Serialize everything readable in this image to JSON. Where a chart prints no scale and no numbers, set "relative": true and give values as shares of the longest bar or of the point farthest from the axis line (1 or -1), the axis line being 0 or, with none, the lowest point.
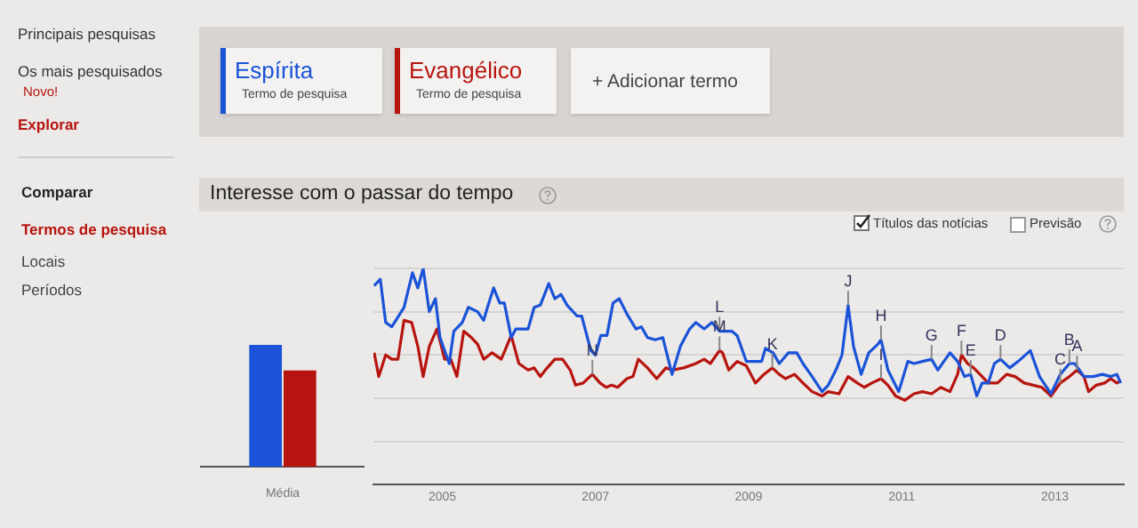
{
  "chart_data": [
    {
      "type": "bar",
      "categories": [
        "Média"
      ],
      "relative": true,
      "series": [
        {
          "color": "#1a53d8",
          "values": [
            1
          ]
        },
        {
          "color": "#b8140f",
          "values": [
            0.79
          ]
        }
      ]
    },
    {
      "type": "line",
      "title": "Interesse com o passar do tempo",
      "relative": true,
      "grid": "y",
      "legend": "top left",
      "marker": "none",
      "xlim": [
        2004.1,
        2013.9
      ],
      "xticks": [
        2005,
        2007,
        2009,
        2011,
        2013
      ],
      "series": [
        {
          "name": "Espírita",
          "color": "#1a53d8",
          "x": [
            2004.11,
            2004.19,
            2004.26,
            2004.34,
            2004.5,
            2004.61,
            2004.68,
            2004.75,
            2004.83,
            2004.91,
            2004.97,
            2005.09,
            2005.15,
            2005.26,
            2005.34,
            2005.46,
            2005.54,
            2005.59,
            2005.67,
            2005.75,
            2005.81,
            2005.9,
            2005.96,
            2006.12,
            2006.2,
            2006.28,
            2006.39,
            2006.47,
            2006.55,
            2006.63,
            2006.76,
            2006.82,
            2006.94,
            2007.0,
            2007.07,
            2007.15,
            2007.23,
            2007.31,
            2007.41,
            2007.53,
            2007.6,
            2007.68,
            2007.78,
            2007.88,
            2008.0,
            2008.11,
            2008.23,
            2008.31,
            2008.42,
            2008.52,
            2008.62,
            2008.78,
            2008.85,
            2008.97,
            2009.17,
            2009.22,
            2009.32,
            2009.4,
            2009.52,
            2009.63,
            2009.71,
            2009.83,
            2009.96,
            2010.04,
            2010.14,
            2010.22,
            2010.3,
            2010.37,
            2010.47,
            2010.57,
            2010.69,
            2010.73,
            2010.82,
            2010.96,
            2011.08,
            2011.16,
            2011.27,
            2011.39,
            2011.47,
            2011.63,
            2011.73,
            2011.82,
            2011.9,
            2011.98,
            2012.05,
            2012.13,
            2012.21,
            2012.29,
            2012.41,
            2012.52,
            2012.68,
            2012.8,
            2012.95,
            2013.07,
            2013.19,
            2013.26,
            2013.38,
            2013.5,
            2013.62,
            2013.73,
            2013.81,
            2013.86
          ],
          "values": [
            0.92,
            0.95,
            0.75,
            0.73,
            0.82,
            0.98,
            0.91,
            1,
            0.8,
            0.86,
            0.68,
            0.56,
            0.71,
            0.75,
            0.82,
            0.8,
            0.76,
            0.82,
            0.91,
            0.84,
            0.84,
            0.68,
            0.72,
            0.72,
            0.82,
            0.83,
            0.93,
            0.86,
            0.88,
            0.83,
            0.78,
            0.78,
            0.62,
            0.6,
            0.69,
            0.69,
            0.84,
            0.86,
            0.79,
            0.72,
            0.73,
            0.68,
            0.67,
            0.68,
            0.51,
            0.64,
            0.72,
            0.75,
            0.72,
            0.75,
            0.71,
            0.71,
            0.69,
            0.57,
            0.57,
            0.63,
            0.61,
            0.56,
            0.61,
            0.61,
            0.56,
            0.5,
            0.43,
            0.46,
            0.53,
            0.6,
            0.83,
            0.64,
            0.51,
            0.61,
            0.65,
            0.67,
            0.53,
            0.43,
            0.57,
            0.56,
            0.57,
            0.58,
            0.53,
            0.61,
            0.57,
            0.5,
            0.51,
            0.41,
            0.47,
            0.47,
            0.56,
            0.58,
            0.54,
            0.57,
            0.62,
            0.5,
            0.42,
            0.51,
            0.56,
            0.56,
            0.5,
            0.5,
            0.51,
            0.5,
            0.51,
            0.47
          ]
        },
        {
          "name": "Evangélico",
          "color": "#b8140f",
          "x": [
            2004.11,
            2004.17,
            2004.26,
            2004.34,
            2004.42,
            2004.5,
            2004.6,
            2004.68,
            2004.75,
            2004.83,
            2004.93,
            2005.03,
            2005.11,
            2005.19,
            2005.28,
            2005.38,
            2005.46,
            2005.54,
            2005.65,
            2005.77,
            2005.9,
            2006.0,
            2006.12,
            2006.2,
            2006.28,
            2006.37,
            2006.47,
            2006.57,
            2006.67,
            2006.74,
            2006.84,
            2006.96,
            2007.06,
            2007.14,
            2007.21,
            2007.29,
            2007.41,
            2007.49,
            2007.56,
            2007.68,
            2007.8,
            2007.92,
            2008.0,
            2008.15,
            2008.31,
            2008.42,
            2008.5,
            2008.62,
            2008.66,
            2008.74,
            2008.85,
            2008.97,
            2009.09,
            2009.2,
            2009.31,
            2009.4,
            2009.48,
            2009.6,
            2009.71,
            2009.83,
            2009.96,
            2010.04,
            2010.18,
            2010.3,
            2010.42,
            2010.51,
            2010.61,
            2010.73,
            2010.82,
            2010.92,
            2011.04,
            2011.16,
            2011.27,
            2011.39,
            2011.51,
            2011.63,
            2011.73,
            2011.78,
            2011.86,
            2011.94,
            2012.05,
            2012.13,
            2012.25,
            2012.37,
            2012.48,
            2012.6,
            2012.72,
            2012.83,
            2012.95,
            2013.07,
            2013.19,
            2013.29,
            2013.38,
            2013.44,
            2013.54,
            2013.65,
            2013.73,
            2013.81,
            2013.86
          ],
          "values": [
            0.61,
            0.5,
            0.6,
            0.58,
            0.58,
            0.76,
            0.75,
            0.64,
            0.5,
            0.64,
            0.72,
            0.58,
            0.58,
            0.5,
            0.71,
            0.68,
            0.65,
            0.58,
            0.61,
            0.58,
            0.69,
            0.56,
            0.53,
            0.54,
            0.5,
            0.54,
            0.58,
            0.58,
            0.53,
            0.46,
            0.47,
            0.51,
            0.47,
            0.45,
            0.46,
            0.45,
            0.49,
            0.5,
            0.58,
            0.54,
            0.49,
            0.54,
            0.53,
            0.54,
            0.56,
            0.58,
            0.56,
            0.62,
            0.61,
            0.53,
            0.57,
            0.55,
            0.47,
            0.51,
            0.54,
            0.51,
            0.49,
            0.51,
            0.47,
            0.43,
            0.41,
            0.43,
            0.42,
            0.5,
            0.47,
            0.45,
            0.47,
            0.49,
            0.46,
            0.41,
            0.39,
            0.42,
            0.43,
            0.42,
            0.45,
            0.43,
            0.51,
            0.6,
            0.56,
            0.54,
            0.5,
            0.47,
            0.47,
            0.51,
            0.5,
            0.47,
            0.46,
            0.45,
            0.41,
            0.47,
            0.5,
            0.53,
            0.5,
            0.43,
            0.46,
            0.47,
            0.49,
            0.47,
            0.48
          ]
        }
      ],
      "annotations": [
        {
          "text": "N",
          "x": 2006.96,
          "y": 0.51
        },
        {
          "text": "L",
          "x": 2008.62,
          "y": 0.71
        },
        {
          "text": "M",
          "x": 2008.62,
          "y": 0.62
        },
        {
          "text": "K",
          "x": 2009.31,
          "y": 0.54
        },
        {
          "text": "J",
          "x": 2010.3,
          "y": 0.83
        },
        {
          "text": "H",
          "x": 2010.73,
          "y": 0.67
        },
        {
          "text": "I",
          "x": 2010.73,
          "y": 0.49
        },
        {
          "text": "G",
          "x": 2011.39,
          "y": 0.58
        },
        {
          "text": "F",
          "x": 2011.78,
          "y": 0.6
        },
        {
          "text": "E",
          "x": 2011.9,
          "y": 0.51
        },
        {
          "text": "D",
          "x": 2012.29,
          "y": 0.58
        },
        {
          "text": "C",
          "x": 2013.07,
          "y": 0.47
        },
        {
          "text": "B",
          "x": 2013.19,
          "y": 0.56
        },
        {
          "text": "A",
          "x": 2013.29,
          "y": 0.53
        },
        "Principais pesquisas",
        "Os mais pesquisados",
        "Novo!",
        "Explorar",
        "Comparar",
        "Termos de pesquisa",
        "Locais",
        "Períodos",
        "Termo de pesquisa",
        "Termo de pesquisa",
        "+ Adicionar termo",
        "Títulos das notícias",
        "Previsão"
      ]
    }
  ]
}
